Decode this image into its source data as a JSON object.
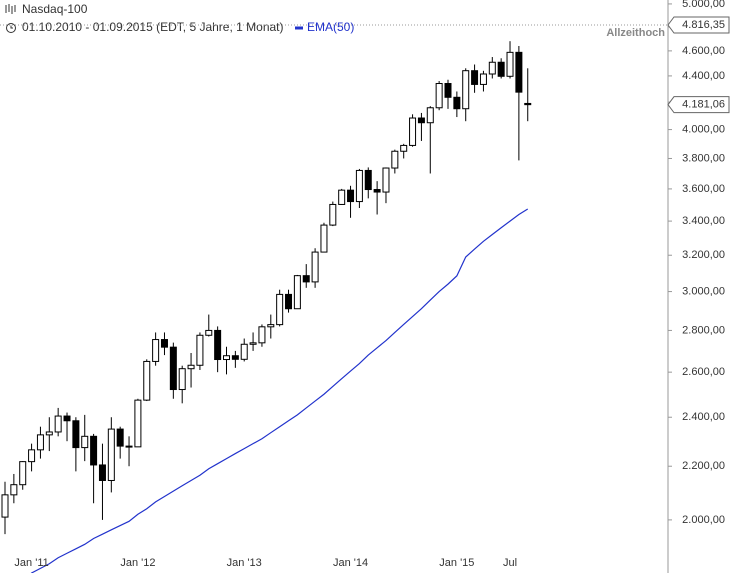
{
  "chart_data": {
    "type": "candlestick",
    "title": "Nasdaq-100",
    "subtitle": "01.10.2010 - 01.09.2015 (EDT, 5 Jahre, 1 Monat)",
    "categories": [
      null,
      null,
      null,
      "Jan '11",
      null,
      null,
      null,
      null,
      null,
      null,
      null,
      null,
      null,
      null,
      null,
      "Jan '12",
      null,
      null,
      null,
      null,
      null,
      null,
      null,
      null,
      null,
      null,
      null,
      "Jan '13",
      null,
      null,
      null,
      null,
      null,
      null,
      null,
      null,
      null,
      null,
      null,
      "Jan '14",
      null,
      null,
      null,
      null,
      null,
      null,
      null,
      null,
      null,
      null,
      null,
      "Jan '15",
      null,
      null,
      null,
      null,
      null,
      "Jul",
      null,
      null
    ],
    "open": [
      2010,
      2091,
      2129,
      2218,
      2265,
      2326,
      2338,
      2405,
      2385,
      2274,
      2320,
      2205,
      2145,
      2350,
      2280,
      2277,
      2474,
      2650,
      2755,
      2718,
      2521,
      2616,
      2632,
      2776,
      2800,
      2659,
      2677,
      2660,
      2732,
      2739,
      2818,
      2829,
      2985,
      2910,
      3086,
      3052,
      3218,
      3376,
      3502,
      3592,
      3520,
      3720,
      3596,
      3580,
      3736,
      3849,
      3889,
      4083,
      4049,
      4158,
      4341,
      4236,
      4151,
      4441,
      4334,
      4415,
      4508,
      4397,
      4588,
      4190
    ],
    "high": [
      2140,
      2170,
      2220,
      2290,
      2360,
      2400,
      2440,
      2420,
      2400,
      2410,
      2330,
      2290,
      2400,
      2360,
      2320,
      2480,
      2660,
      2790,
      2790,
      2740,
      2630,
      2690,
      2790,
      2880,
      2820,
      2720,
      2700,
      2760,
      2790,
      2830,
      2880,
      3010,
      3010,
      3090,
      3150,
      3240,
      3390,
      3520,
      3600,
      3620,
      3730,
      3740,
      3650,
      3740,
      3860,
      3900,
      4110,
      4120,
      4170,
      4360,
      4370,
      4280,
      4460,
      4490,
      4440,
      4550,
      4540,
      4680,
      4640,
      4460
    ],
    "low": [
      1950,
      2060,
      2110,
      2180,
      2230,
      2260,
      2320,
      2300,
      2180,
      2220,
      2060,
      2000,
      2100,
      2230,
      2200,
      2290,
      2470,
      2630,
      2680,
      2480,
      2460,
      2530,
      2610,
      2770,
      2600,
      2590,
      2620,
      2650,
      2700,
      2720,
      2760,
      2820,
      2890,
      2920,
      3020,
      3020,
      3220,
      3370,
      3500,
      3420,
      3480,
      3540,
      3440,
      3510,
      3700,
      3800,
      3880,
      3920,
      3700,
      4140,
      4150,
      4090,
      4060,
      4270,
      4280,
      4380,
      4380,
      4380,
      3787,
      4060
    ],
    "close": [
      2091,
      2129,
      2218,
      2265,
      2326,
      2338,
      2405,
      2385,
      2274,
      2320,
      2205,
      2145,
      2350,
      2280,
      2277,
      2474,
      2650,
      2755,
      2718,
      2521,
      2616,
      2632,
      2776,
      2800,
      2659,
      2677,
      2660,
      2732,
      2739,
      2818,
      2829,
      2985,
      2910,
      3086,
      3052,
      3218,
      3376,
      3502,
      3592,
      3520,
      3720,
      3596,
      3580,
      3736,
      3849,
      3889,
      4083,
      4049,
      4158,
      4341,
      4236,
      4151,
      4441,
      4334,
      4415,
      4508,
      4397,
      4588,
      4275,
      4181.06
    ],
    "series": [
      {
        "name": "EMA(50)",
        "color": "#2233cc",
        "values": [
          1760,
          1775,
          1790,
          1820,
          1835,
          1850,
          1870,
          1885,
          1900,
          1915,
          1935,
          1950,
          1965,
          1980,
          1995,
          2020,
          2040,
          2065,
          2085,
          2105,
          2125,
          2145,
          2165,
          2190,
          2210,
          2230,
          2250,
          2270,
          2290,
          2310,
          2335,
          2360,
          2385,
          2410,
          2440,
          2470,
          2500,
          2535,
          2570,
          2605,
          2640,
          2680,
          2715,
          2750,
          2790,
          2830,
          2870,
          2910,
          2955,
          3000,
          3040,
          3085,
          3190,
          3235,
          3280,
          3320,
          3360,
          3400,
          3440,
          3474
        ]
      }
    ],
    "log_y": true,
    "ylim": [
      1820,
      5035
    ],
    "yticks": [
      {
        "value": 2000,
        "label": "2.000,00"
      },
      {
        "value": 2200,
        "label": "2.200,00"
      },
      {
        "value": 2400,
        "label": "2.400,00"
      },
      {
        "value": 2600,
        "label": "2.600,00"
      },
      {
        "value": 2800,
        "label": "2.800,00"
      },
      {
        "value": 3000,
        "label": "3.000,00"
      },
      {
        "value": 3200,
        "label": "3.200,00"
      },
      {
        "value": 3400,
        "label": "3.400,00"
      },
      {
        "value": 3600,
        "label": "3.600,00"
      },
      {
        "value": 3800,
        "label": "3.800,00"
      },
      {
        "value": 4000,
        "label": "4.000,00"
      },
      {
        "value": 4200,
        "label": "4.200,00"
      },
      {
        "value": 4400,
        "label": "4.400,00"
      },
      {
        "value": 4600,
        "label": "4.600,00"
      },
      {
        "value": 4800,
        "label": "4.800,00"
      },
      {
        "value": 5000,
        "label": "5.000,00"
      }
    ],
    "annotations": [
      {
        "text": "Allzeithoch",
        "value": 4816.35,
        "value_label": "4.816,35"
      },
      {
        "value": 4181.06,
        "value_label": "4.181,06"
      }
    ]
  }
}
